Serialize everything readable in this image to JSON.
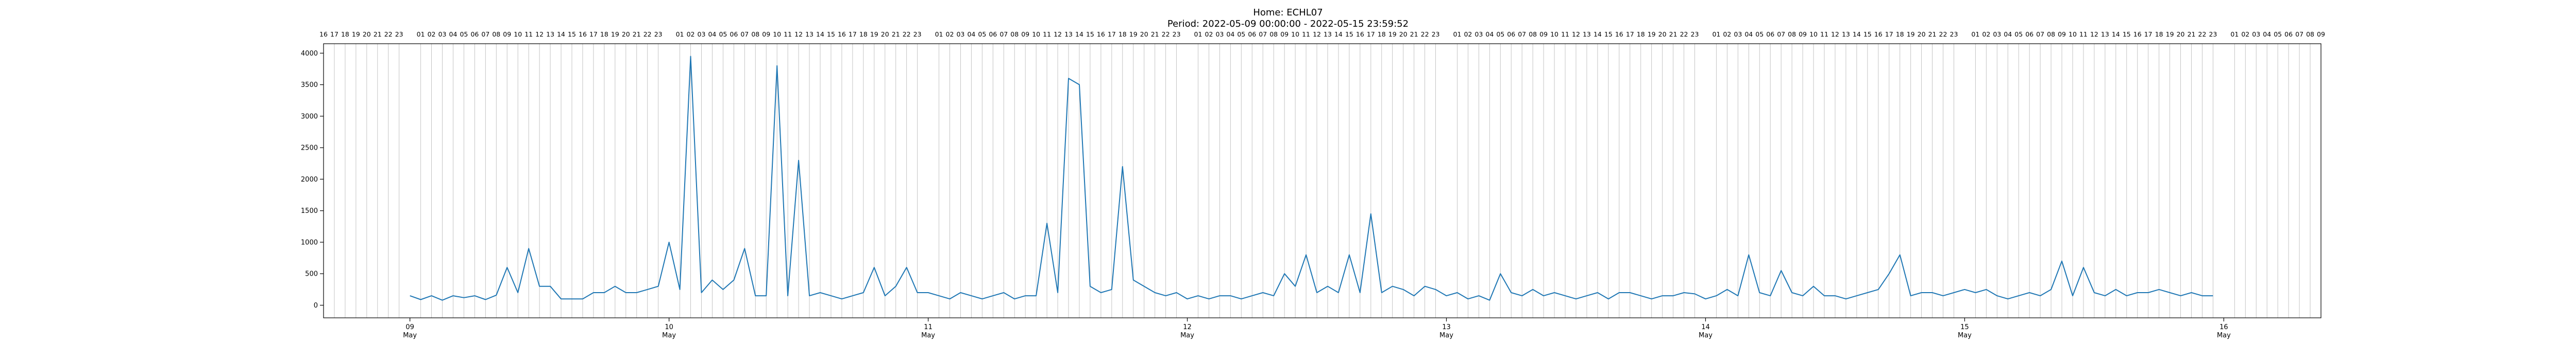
{
  "chart_data": {
    "type": "line",
    "title": "Home: ECHL07",
    "subtitle": "Period: 2022-05-09 00:00:00 - 2022-05-15 23:59:52",
    "xlabel": "",
    "ylabel": "",
    "x_range": [
      "2022-05-08 16:00",
      "2022-05-16 09:00"
    ],
    "ylim": [
      -200,
      4150
    ],
    "yticks": [
      0,
      500,
      1000,
      1500,
      2000,
      2500,
      3000,
      3500,
      4000
    ],
    "xticks": [
      {
        "value": "2022-05-09",
        "label": "09",
        "sublabel": "May"
      },
      {
        "value": "2022-05-10",
        "label": "10",
        "sublabel": "May"
      },
      {
        "value": "2022-05-11",
        "label": "11",
        "sublabel": "May"
      },
      {
        "value": "2022-05-12",
        "label": "12",
        "sublabel": "May"
      },
      {
        "value": "2022-05-13",
        "label": "13",
        "sublabel": "May"
      },
      {
        "value": "2022-05-14",
        "label": "14",
        "sublabel": "May"
      },
      {
        "value": "2022-05-15",
        "label": "15",
        "sublabel": "May"
      },
      {
        "value": "2022-05-16",
        "label": "16",
        "sublabel": "May"
      }
    ],
    "top_axis_hours": "hour of day 01-23 labelled at top, vertical hourly gridlines",
    "grid": true,
    "color": "#1f77b4",
    "series": [
      {
        "x": [
          "2022-05-09 00:00",
          "2022-05-09 01:00",
          "2022-05-09 02:00",
          "2022-05-09 03:00",
          "2022-05-09 04:00",
          "2022-05-09 05:00",
          "2022-05-09 06:00",
          "2022-05-09 07:00",
          "2022-05-09 08:00",
          "2022-05-09 09:00",
          "2022-05-09 10:00",
          "2022-05-09 11:00",
          "2022-05-09 12:00",
          "2022-05-09 13:00",
          "2022-05-09 14:00",
          "2022-05-09 15:00",
          "2022-05-09 16:00",
          "2022-05-09 17:00",
          "2022-05-09 18:00",
          "2022-05-09 19:00",
          "2022-05-09 20:00",
          "2022-05-09 21:00",
          "2022-05-09 22:00",
          "2022-05-09 23:00",
          "2022-05-10 00:00",
          "2022-05-10 01:00",
          "2022-05-10 02:00",
          "2022-05-10 03:00",
          "2022-05-10 04:00",
          "2022-05-10 05:00",
          "2022-05-10 06:00",
          "2022-05-10 07:00",
          "2022-05-10 08:00",
          "2022-05-10 09:00",
          "2022-05-10 10:00",
          "2022-05-10 11:00",
          "2022-05-10 12:00",
          "2022-05-10 13:00",
          "2022-05-10 14:00",
          "2022-05-10 15:00",
          "2022-05-10 16:00",
          "2022-05-10 17:00",
          "2022-05-10 18:00",
          "2022-05-10 19:00",
          "2022-05-10 20:00",
          "2022-05-10 21:00",
          "2022-05-10 22:00",
          "2022-05-10 23:00",
          "2022-05-11 00:00",
          "2022-05-11 01:00",
          "2022-05-11 02:00",
          "2022-05-11 03:00",
          "2022-05-11 04:00",
          "2022-05-11 05:00",
          "2022-05-11 06:00",
          "2022-05-11 07:00",
          "2022-05-11 08:00",
          "2022-05-11 09:00",
          "2022-05-11 10:00",
          "2022-05-11 11:00",
          "2022-05-11 12:00",
          "2022-05-11 13:00",
          "2022-05-11 14:00",
          "2022-05-11 15:00",
          "2022-05-11 16:00",
          "2022-05-11 17:00",
          "2022-05-11 18:00",
          "2022-05-11 19:00",
          "2022-05-11 20:00",
          "2022-05-11 21:00",
          "2022-05-11 22:00",
          "2022-05-11 23:00",
          "2022-05-12 00:00",
          "2022-05-12 01:00",
          "2022-05-12 02:00",
          "2022-05-12 03:00",
          "2022-05-12 04:00",
          "2022-05-12 05:00",
          "2022-05-12 06:00",
          "2022-05-12 07:00",
          "2022-05-12 08:00",
          "2022-05-12 09:00",
          "2022-05-12 10:00",
          "2022-05-12 11:00",
          "2022-05-12 12:00",
          "2022-05-12 13:00",
          "2022-05-12 14:00",
          "2022-05-12 15:00",
          "2022-05-12 16:00",
          "2022-05-12 17:00",
          "2022-05-12 18:00",
          "2022-05-12 19:00",
          "2022-05-12 20:00",
          "2022-05-12 21:00",
          "2022-05-12 22:00",
          "2022-05-12 23:00",
          "2022-05-13 00:00",
          "2022-05-13 01:00",
          "2022-05-13 02:00",
          "2022-05-13 03:00",
          "2022-05-13 04:00",
          "2022-05-13 05:00",
          "2022-05-13 06:00",
          "2022-05-13 07:00",
          "2022-05-13 08:00",
          "2022-05-13 09:00",
          "2022-05-13 10:00",
          "2022-05-13 11:00",
          "2022-05-13 12:00",
          "2022-05-13 13:00",
          "2022-05-13 14:00",
          "2022-05-13 15:00",
          "2022-05-13 16:00",
          "2022-05-13 17:00",
          "2022-05-13 18:00",
          "2022-05-13 19:00",
          "2022-05-13 20:00",
          "2022-05-13 21:00",
          "2022-05-13 22:00",
          "2022-05-13 23:00",
          "2022-05-14 00:00",
          "2022-05-14 01:00",
          "2022-05-14 02:00",
          "2022-05-14 03:00",
          "2022-05-14 04:00",
          "2022-05-14 05:00",
          "2022-05-14 06:00",
          "2022-05-14 07:00",
          "2022-05-14 08:00",
          "2022-05-14 09:00",
          "2022-05-14 10:00",
          "2022-05-14 11:00",
          "2022-05-14 12:00",
          "2022-05-14 13:00",
          "2022-05-14 14:00",
          "2022-05-14 15:00",
          "2022-05-14 16:00",
          "2022-05-14 17:00",
          "2022-05-14 18:00",
          "2022-05-14 19:00",
          "2022-05-14 20:00",
          "2022-05-14 21:00",
          "2022-05-14 22:00",
          "2022-05-14 23:00",
          "2022-05-15 00:00",
          "2022-05-15 01:00",
          "2022-05-15 02:00",
          "2022-05-15 03:00",
          "2022-05-15 04:00",
          "2022-05-15 05:00",
          "2022-05-15 06:00",
          "2022-05-15 07:00",
          "2022-05-15 08:00",
          "2022-05-15 09:00",
          "2022-05-15 10:00",
          "2022-05-15 11:00",
          "2022-05-15 12:00",
          "2022-05-15 13:00",
          "2022-05-15 14:00",
          "2022-05-15 15:00",
          "2022-05-15 16:00",
          "2022-05-15 17:00",
          "2022-05-15 18:00",
          "2022-05-15 19:00",
          "2022-05-15 20:00",
          "2022-05-15 21:00",
          "2022-05-15 22:00",
          "2022-05-15 23:00"
        ],
        "values": [
          150,
          90,
          150,
          80,
          150,
          120,
          150,
          90,
          160,
          600,
          200,
          900,
          300,
          300,
          100,
          100,
          100,
          200,
          200,
          300,
          200,
          200,
          250,
          300,
          1000,
          250,
          3950,
          200,
          400,
          250,
          400,
          900,
          150,
          150,
          3800,
          150,
          2300,
          150,
          200,
          150,
          100,
          150,
          200,
          600,
          150,
          300,
          600,
          200,
          200,
          150,
          100,
          200,
          150,
          100,
          150,
          200,
          100,
          150,
          150,
          1300,
          200,
          3600,
          3500,
          300,
          200,
          250,
          2200,
          400,
          300,
          200,
          150,
          200,
          100,
          150,
          100,
          150,
          150,
          100,
          150,
          200,
          150,
          500,
          300,
          800,
          200,
          300,
          200,
          800,
          200,
          1450,
          200,
          300,
          250,
          150,
          300,
          250,
          150,
          200,
          100,
          150,
          80,
          500,
          200,
          150,
          250,
          150,
          200,
          150,
          100,
          150,
          200,
          100,
          200,
          200,
          150,
          100,
          150,
          150,
          200,
          180,
          100,
          150,
          250,
          150,
          800,
          200,
          150,
          550,
          200,
          150,
          300,
          150,
          150,
          100,
          150,
          200,
          250,
          500,
          800,
          150,
          200,
          200,
          150,
          200,
          250,
          200,
          250,
          150,
          100,
          150,
          200,
          150,
          250,
          700,
          150,
          600,
          200,
          150,
          250,
          150,
          200,
          200,
          250,
          200,
          150,
          200,
          150,
          150
        ]
      }
    ]
  }
}
